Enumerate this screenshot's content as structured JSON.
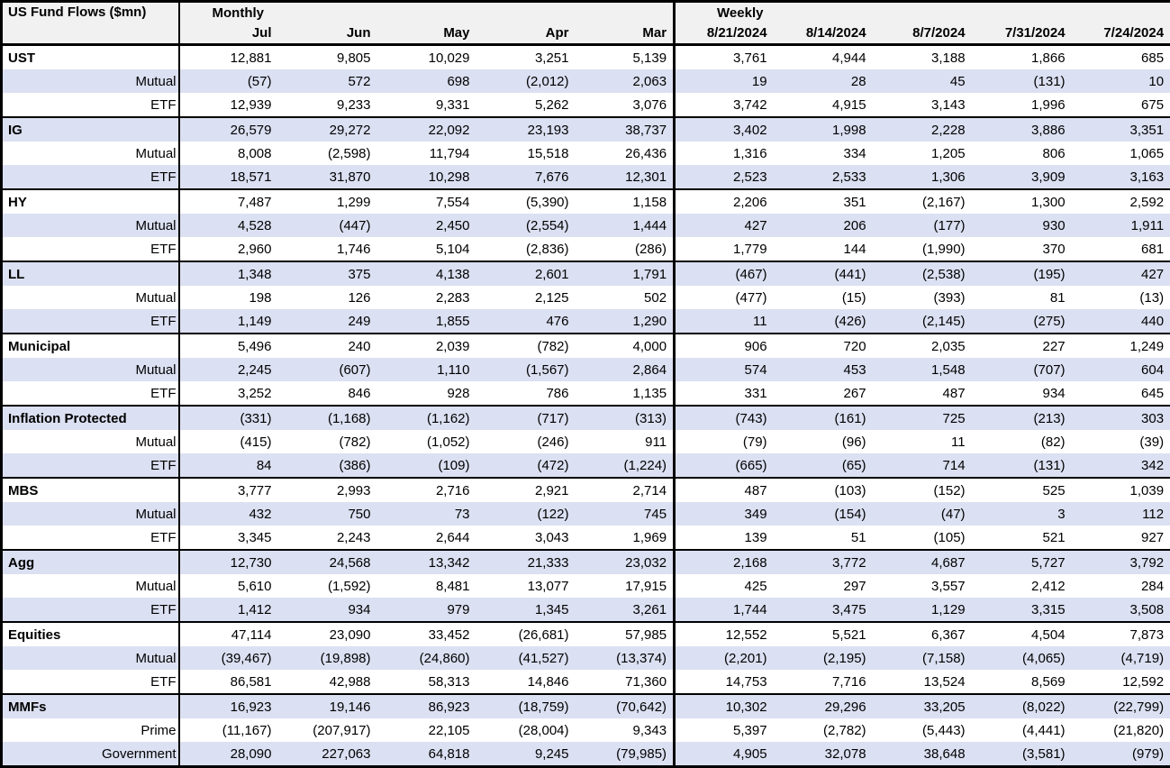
{
  "table": {
    "title": "US Fund Flows ($mn)",
    "monthly_label": "Monthly",
    "weekly_label": "Weekly",
    "monthly_columns": [
      "Jul",
      "Jun",
      "May",
      "Apr",
      "Mar"
    ],
    "weekly_columns": [
      "8/21/2024",
      "8/14/2024",
      "8/7/2024",
      "7/31/2024",
      "7/24/2024"
    ],
    "groups": [
      {
        "name": "UST",
        "total_monthly": [
          "12,881",
          "9,805",
          "10,029",
          "3,251",
          "5,139"
        ],
        "total_weekly": [
          "3,761",
          "4,944",
          "3,188",
          "1,866",
          "685"
        ],
        "sub_rows": [
          {
            "label": "Mutual",
            "monthly": [
              "(57)",
              "572",
              "698",
              "(2,012)",
              "2,063"
            ],
            "weekly": [
              "19",
              "28",
              "45",
              "(131)",
              "10"
            ]
          },
          {
            "label": "ETF",
            "monthly": [
              "12,939",
              "9,233",
              "9,331",
              "5,262",
              "3,076"
            ],
            "weekly": [
              "3,742",
              "4,915",
              "3,143",
              "1,996",
              "675"
            ]
          }
        ]
      },
      {
        "name": "IG",
        "total_monthly": [
          "26,579",
          "29,272",
          "22,092",
          "23,193",
          "38,737"
        ],
        "total_weekly": [
          "3,402",
          "1,998",
          "2,228",
          "3,886",
          "3,351"
        ],
        "sub_rows": [
          {
            "label": "Mutual",
            "monthly": [
              "8,008",
              "(2,598)",
              "11,794",
              "15,518",
              "26,436"
            ],
            "weekly": [
              "1,316",
              "334",
              "1,205",
              "806",
              "1,065"
            ]
          },
          {
            "label": "ETF",
            "monthly": [
              "18,571",
              "31,870",
              "10,298",
              "7,676",
              "12,301"
            ],
            "weekly": [
              "2,523",
              "2,533",
              "1,306",
              "3,909",
              "3,163"
            ]
          }
        ]
      },
      {
        "name": "HY",
        "total_monthly": [
          "7,487",
          "1,299",
          "7,554",
          "(5,390)",
          "1,158"
        ],
        "total_weekly": [
          "2,206",
          "351",
          "(2,167)",
          "1,300",
          "2,592"
        ],
        "sub_rows": [
          {
            "label": "Mutual",
            "monthly": [
              "4,528",
              "(447)",
              "2,450",
              "(2,554)",
              "1,444"
            ],
            "weekly": [
              "427",
              "206",
              "(177)",
              "930",
              "1,911"
            ]
          },
          {
            "label": "ETF",
            "monthly": [
              "2,960",
              "1,746",
              "5,104",
              "(2,836)",
              "(286)"
            ],
            "weekly": [
              "1,779",
              "144",
              "(1,990)",
              "370",
              "681"
            ]
          }
        ]
      },
      {
        "name": "LL",
        "total_monthly": [
          "1,348",
          "375",
          "4,138",
          "2,601",
          "1,791"
        ],
        "total_weekly": [
          "(467)",
          "(441)",
          "(2,538)",
          "(195)",
          "427"
        ],
        "sub_rows": [
          {
            "label": "Mutual",
            "monthly": [
              "198",
              "126",
              "2,283",
              "2,125",
              "502"
            ],
            "weekly": [
              "(477)",
              "(15)",
              "(393)",
              "81",
              "(13)"
            ]
          },
          {
            "label": "ETF",
            "monthly": [
              "1,149",
              "249",
              "1,855",
              "476",
              "1,290"
            ],
            "weekly": [
              "11",
              "(426)",
              "(2,145)",
              "(275)",
              "440"
            ]
          }
        ]
      },
      {
        "name": "Municipal",
        "total_monthly": [
          "5,496",
          "240",
          "2,039",
          "(782)",
          "4,000"
        ],
        "total_weekly": [
          "906",
          "720",
          "2,035",
          "227",
          "1,249"
        ],
        "sub_rows": [
          {
            "label": "Mutual",
            "monthly": [
              "2,245",
              "(607)",
              "1,110",
              "(1,567)",
              "2,864"
            ],
            "weekly": [
              "574",
              "453",
              "1,548",
              "(707)",
              "604"
            ]
          },
          {
            "label": "ETF",
            "monthly": [
              "3,252",
              "846",
              "928",
              "786",
              "1,135"
            ],
            "weekly": [
              "331",
              "267",
              "487",
              "934",
              "645"
            ]
          }
        ]
      },
      {
        "name": "Inflation Protected",
        "total_monthly": [
          "(331)",
          "(1,168)",
          "(1,162)",
          "(717)",
          "(313)"
        ],
        "total_weekly": [
          "(743)",
          "(161)",
          "725",
          "(213)",
          "303"
        ],
        "sub_rows": [
          {
            "label": "Mutual",
            "monthly": [
              "(415)",
              "(782)",
              "(1,052)",
              "(246)",
              "911"
            ],
            "weekly": [
              "(79)",
              "(96)",
              "11",
              "(82)",
              "(39)"
            ]
          },
          {
            "label": "ETF",
            "monthly": [
              "84",
              "(386)",
              "(109)",
              "(472)",
              "(1,224)"
            ],
            "weekly": [
              "(665)",
              "(65)",
              "714",
              "(131)",
              "342"
            ]
          }
        ]
      },
      {
        "name": "MBS",
        "total_monthly": [
          "3,777",
          "2,993",
          "2,716",
          "2,921",
          "2,714"
        ],
        "total_weekly": [
          "487",
          "(103)",
          "(152)",
          "525",
          "1,039"
        ],
        "sub_rows": [
          {
            "label": "Mutual",
            "monthly": [
              "432",
              "750",
              "73",
              "(122)",
              "745"
            ],
            "weekly": [
              "349",
              "(154)",
              "(47)",
              "3",
              "112"
            ]
          },
          {
            "label": "ETF",
            "monthly": [
              "3,345",
              "2,243",
              "2,644",
              "3,043",
              "1,969"
            ],
            "weekly": [
              "139",
              "51",
              "(105)",
              "521",
              "927"
            ]
          }
        ]
      },
      {
        "name": "Agg",
        "total_monthly": [
          "12,730",
          "24,568",
          "13,342",
          "21,333",
          "23,032"
        ],
        "total_weekly": [
          "2,168",
          "3,772",
          "4,687",
          "5,727",
          "3,792"
        ],
        "sub_rows": [
          {
            "label": "Mutual",
            "monthly": [
              "5,610",
              "(1,592)",
              "8,481",
              "13,077",
              "17,915"
            ],
            "weekly": [
              "425",
              "297",
              "3,557",
              "2,412",
              "284"
            ]
          },
          {
            "label": "ETF",
            "monthly": [
              "1,412",
              "934",
              "979",
              "1,345",
              "3,261"
            ],
            "weekly": [
              "1,744",
              "3,475",
              "1,129",
              "3,315",
              "3,508"
            ]
          }
        ]
      },
      {
        "name": "Equities",
        "total_monthly": [
          "47,114",
          "23,090",
          "33,452",
          "(26,681)",
          "57,985"
        ],
        "total_weekly": [
          "12,552",
          "5,521",
          "6,367",
          "4,504",
          "7,873"
        ],
        "sub_rows": [
          {
            "label": "Mutual",
            "monthly": [
              "(39,467)",
              "(19,898)",
              "(24,860)",
              "(41,527)",
              "(13,374)"
            ],
            "weekly": [
              "(2,201)",
              "(2,195)",
              "(7,158)",
              "(4,065)",
              "(4,719)"
            ]
          },
          {
            "label": "ETF",
            "monthly": [
              "86,581",
              "42,988",
              "58,313",
              "14,846",
              "71,360"
            ],
            "weekly": [
              "14,753",
              "7,716",
              "13,524",
              "8,569",
              "12,592"
            ]
          }
        ]
      },
      {
        "name": "MMFs",
        "total_monthly": [
          "16,923",
          "19,146",
          "86,923",
          "(18,759)",
          "(70,642)"
        ],
        "total_weekly": [
          "10,302",
          "29,296",
          "33,205",
          "(8,022)",
          "(22,799)"
        ],
        "sub_rows": [
          {
            "label": "Prime",
            "monthly": [
              "(11,167)",
              "(207,917)",
              "22,105",
              "(28,004)",
              "9,343"
            ],
            "weekly": [
              "5,397",
              "(2,782)",
              "(5,443)",
              "(4,441)",
              "(21,820)"
            ]
          },
          {
            "label": "Government",
            "monthly": [
              "28,090",
              "227,063",
              "64,818",
              "9,245",
              "(79,985)"
            ],
            "weekly": [
              "4,905",
              "32,078",
              "38,648",
              "(3,581)",
              "(979)"
            ]
          }
        ]
      }
    ]
  },
  "colors": {
    "row_shade": "#dbe0f2",
    "header_bg": "#f1f1f1",
    "border": "#000000",
    "background": "#ffffff"
  }
}
